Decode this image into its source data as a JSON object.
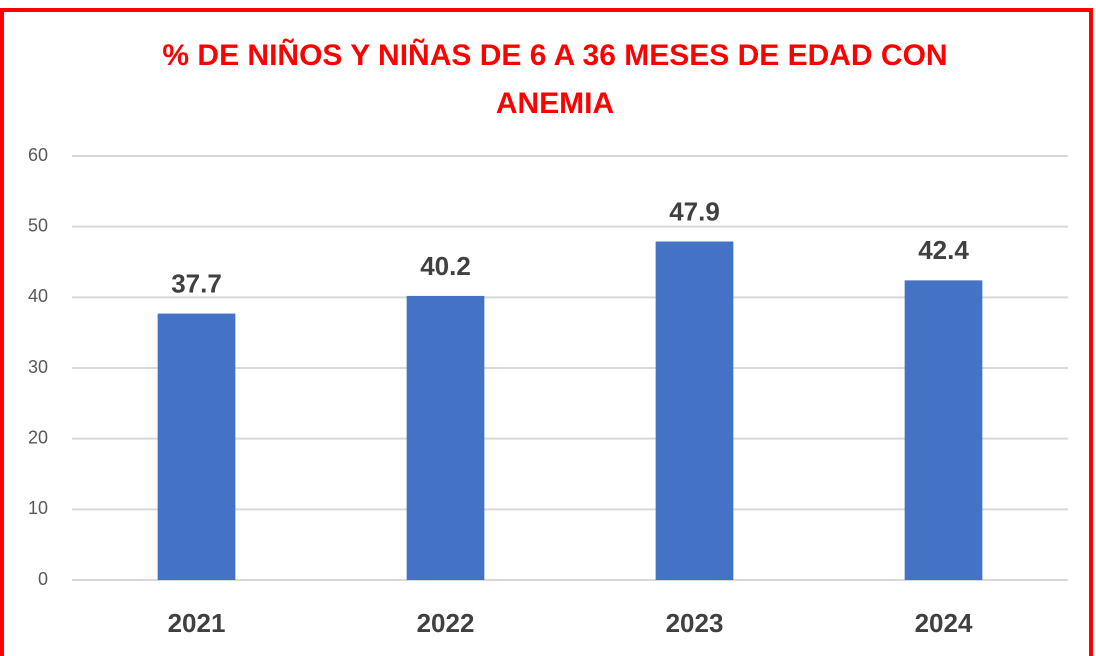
{
  "chart_data": {
    "type": "bar",
    "title": "% DE NIÑOS Y NIÑAS DE 6 A 36 MESES DE EDAD CON ANEMIA",
    "categories": [
      "2021",
      "2022",
      "2023",
      "2024"
    ],
    "values": [
      37.7,
      40.2,
      47.9,
      42.4
    ],
    "color": "#4472c4",
    "ylim": [
      0,
      60
    ],
    "yticks": [
      0,
      10,
      20,
      30,
      40,
      50,
      60
    ],
    "grid": true
  }
}
